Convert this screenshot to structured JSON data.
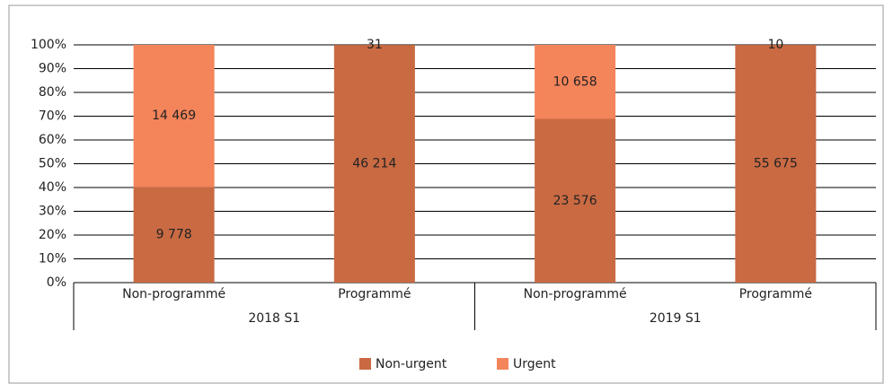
{
  "chart_data": {
    "type": "bar",
    "stacking": "percent",
    "categories": [
      "Non-programmé",
      "Programmé",
      "Non-programmé",
      "Programmé"
    ],
    "groups": [
      "2018 S1",
      "2019 S1"
    ],
    "series": [
      {
        "name": "Non-urgent",
        "color": "#c96a43",
        "values": [
          9778,
          46214,
          23576,
          55675
        ],
        "value_labels": [
          "9 778",
          "46 214",
          "23 576",
          "55 675"
        ]
      },
      {
        "name": "Urgent",
        "color": "#f4845a",
        "values": [
          14469,
          31,
          10658,
          10
        ],
        "value_labels": [
          "14 469",
          "31",
          "10 658",
          "10"
        ]
      }
    ],
    "ylim": [
      0,
      100
    ],
    "yticks": [
      {
        "value": 0,
        "label": "0%"
      },
      {
        "value": 10,
        "label": "10%"
      },
      {
        "value": 20,
        "label": "20%"
      },
      {
        "value": 30,
        "label": "30%"
      },
      {
        "value": 40,
        "label": "40%"
      },
      {
        "value": 50,
        "label": "50%"
      },
      {
        "value": 60,
        "label": "60%"
      },
      {
        "value": 70,
        "label": "70%"
      },
      {
        "value": 80,
        "label": "80%"
      },
      {
        "value": 90,
        "label": "90%"
      },
      {
        "value": 100,
        "label": "100%"
      }
    ],
    "grid": true,
    "legend": "bottom"
  }
}
